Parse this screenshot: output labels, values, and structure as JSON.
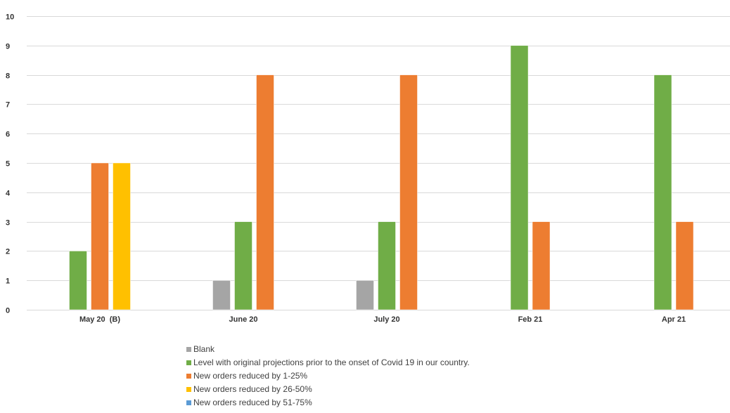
{
  "chart_data": {
    "type": "bar",
    "title": "",
    "xlabel": "",
    "ylabel": "",
    "ylim": [
      0,
      10
    ],
    "yticks": [
      "0",
      "1",
      "2",
      "3",
      "4",
      "5",
      "6",
      "7",
      "8",
      "9",
      "10"
    ],
    "grid": true,
    "legend_position": "bottom",
    "categories": [
      "May 20  (B)",
      "June 20",
      "July 20",
      "Feb 21",
      "Apr 21"
    ],
    "series": [
      {
        "name": "Blank",
        "color": "#a5a5a5",
        "values": [
          null,
          1,
          1,
          null,
          null
        ]
      },
      {
        "name": "Level with original projections prior to the onset of Covid 19 in our country.",
        "color": "#70ad47",
        "values": [
          2,
          3,
          3,
          9,
          8
        ]
      },
      {
        "name": "New orders reduced by 1-25%",
        "color": "#ed7d31",
        "values": [
          5,
          8,
          8,
          3,
          3
        ]
      },
      {
        "name": "New orders reduced by 26-50%",
        "color": "#ffc000",
        "values": [
          5,
          null,
          null,
          null,
          null
        ]
      },
      {
        "name": "New orders reduced by 51-75%",
        "color": "#5b9bd5",
        "values": [
          null,
          null,
          null,
          null,
          null
        ]
      }
    ]
  }
}
